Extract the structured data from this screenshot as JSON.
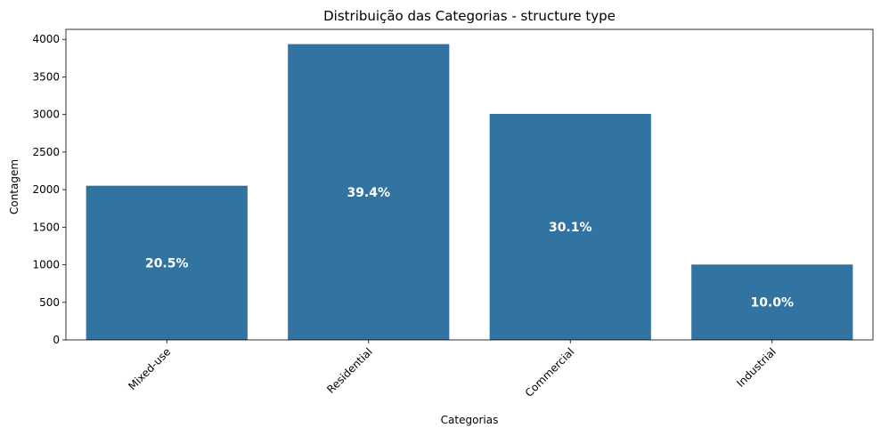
{
  "chart_data": {
    "type": "bar",
    "title": "Distribuição das Categorias - structure type",
    "xlabel": "Categorias",
    "ylabel": "Contagem",
    "categories": [
      "Mixed-use",
      "Residential",
      "Commercial",
      "Industrial"
    ],
    "values": [
      2052,
      3937,
      3008,
      1003
    ],
    "data_labels": [
      "20.5%",
      "39.4%",
      "30.1%",
      "10.0%"
    ],
    "ylim": [
      0,
      4133
    ],
    "yticks": [
      0,
      500,
      1000,
      1500,
      2000,
      2500,
      3000,
      3500,
      4000
    ],
    "x_tick_rotation_deg": 45,
    "bar_color": "#3274a1",
    "grid": false,
    "legend": "none"
  }
}
